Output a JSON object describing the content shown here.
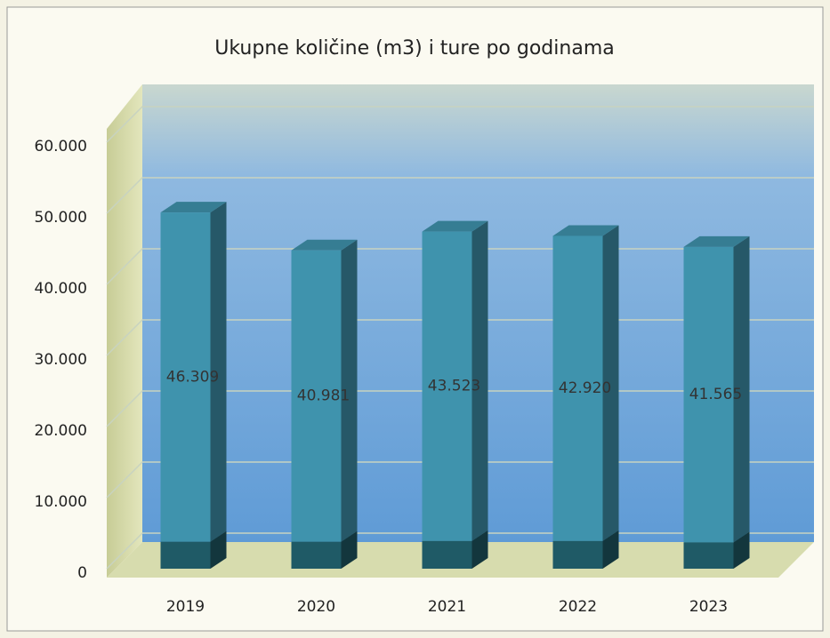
{
  "chart_data": {
    "type": "bar",
    "title": "Ukupne količine (m3) i ture po godinama",
    "categories": [
      "2019",
      "2020",
      "2021",
      "2022",
      "2023"
    ],
    "series": [
      {
        "color": "#1f5a66",
        "values": [
          3800,
          3800,
          3900,
          3900,
          3700
        ]
      },
      {
        "color": "#3f93ad",
        "values": [
          46309,
          40981,
          43523,
          42920,
          41565
        ],
        "value_labels": [
          "46.309",
          "40.981",
          "43.523",
          "42.920",
          "41.565"
        ]
      }
    ],
    "ylim": [
      0,
      60000
    ],
    "yticks": [
      0,
      {
        "value": 10000,
        "label": "10.000"
      },
      {
        "value": 20000,
        "label": "20.000"
      },
      {
        "value": 30000,
        "label": "30.000"
      },
      {
        "value": 40000,
        "label": "40.000"
      },
      {
        "value": 50000,
        "label": "50.000"
      },
      {
        "value": 60000,
        "label": "60.000"
      }
    ],
    "grid": true,
    "stacked": true
  }
}
